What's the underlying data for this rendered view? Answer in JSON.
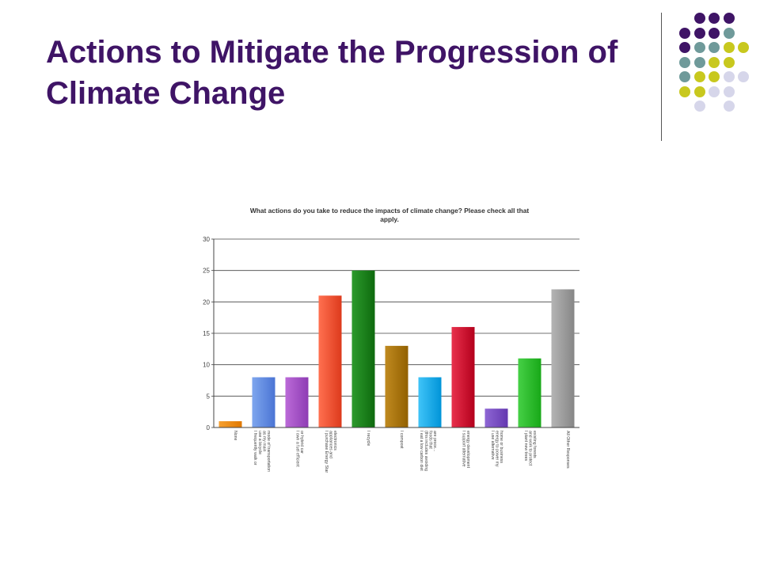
{
  "slide": {
    "title_line1": "Actions to Mitigate the Progression of",
    "title_line2": "Climate Change"
  },
  "decoration": {
    "dot_colors": [
      "#3f1466",
      "#6f9a9a",
      "#c8c81e",
      "#d6d6ea"
    ],
    "divider_color": "#555555"
  },
  "chart_data": {
    "type": "bar",
    "title": "What actions do you take to reduce the impacts of climate change? Please check all that apply.",
    "title_lines": [
      "What actions do you take to reduce the impacts of climate change? Please check all that",
      "apply."
    ],
    "categories": [
      "None",
      "I frequently walk or use a bicycle as my main mode of transportation",
      "I own a fuel efficient or hybrid car",
      "I purchase Energy Star appliances and electronics",
      "I recycle",
      "I compost",
      "I eat a low carbon diet (this includes avoiding foods that are proce...",
      "I support alternative energy development",
      "I use alternative energy to power my home or business",
      "I plant new trees and work to protect existing forests",
      "All Other Responses"
    ],
    "category_label_lines": [
      [
        "None"
      ],
      [
        "I frequently walk or",
        "use a bicycle",
        "as my main",
        "mode of transportation"
      ],
      [
        "I own a fuel efficient",
        "or hybrid car"
      ],
      [
        "I purchase Energy Star",
        "appliances and",
        "electronics"
      ],
      [
        "I recycle"
      ],
      [
        "I compost"
      ],
      [
        "I eat a low carbon diet",
        "(this includes avoiding",
        "foods that",
        "are proce..."
      ],
      [
        "I support alternative",
        "energy development"
      ],
      [
        "I use alternative",
        "energy to power my",
        "home or business"
      ],
      [
        "I plant new trees",
        "and work to protect",
        "existing forests"
      ],
      [
        "All Other Responses"
      ]
    ],
    "values": [
      1,
      8,
      8,
      21,
      25,
      13,
      8,
      16,
      3,
      11,
      22
    ],
    "colors": [
      [
        "#f6a030",
        "#e07800"
      ],
      [
        "#7ea6ee",
        "#4a74d4"
      ],
      [
        "#bb6ad8",
        "#8e3cb4"
      ],
      [
        "#ff7050",
        "#dd3a1c"
      ],
      [
        "#2c9a2c",
        "#0e6a0e"
      ],
      [
        "#c08a20",
        "#926000"
      ],
      [
        "#40c4f8",
        "#0094d8"
      ],
      [
        "#e8304c",
        "#b4001c"
      ],
      [
        "#8e66d4",
        "#6438b0"
      ],
      [
        "#46d046",
        "#18a818"
      ],
      [
        "#b4b4b4",
        "#868686"
      ]
    ],
    "y_ticks": [
      0,
      5,
      10,
      15,
      20,
      25,
      30
    ],
    "ylim": [
      0,
      30
    ],
    "grid": true,
    "xlabel": "",
    "ylabel": ""
  }
}
